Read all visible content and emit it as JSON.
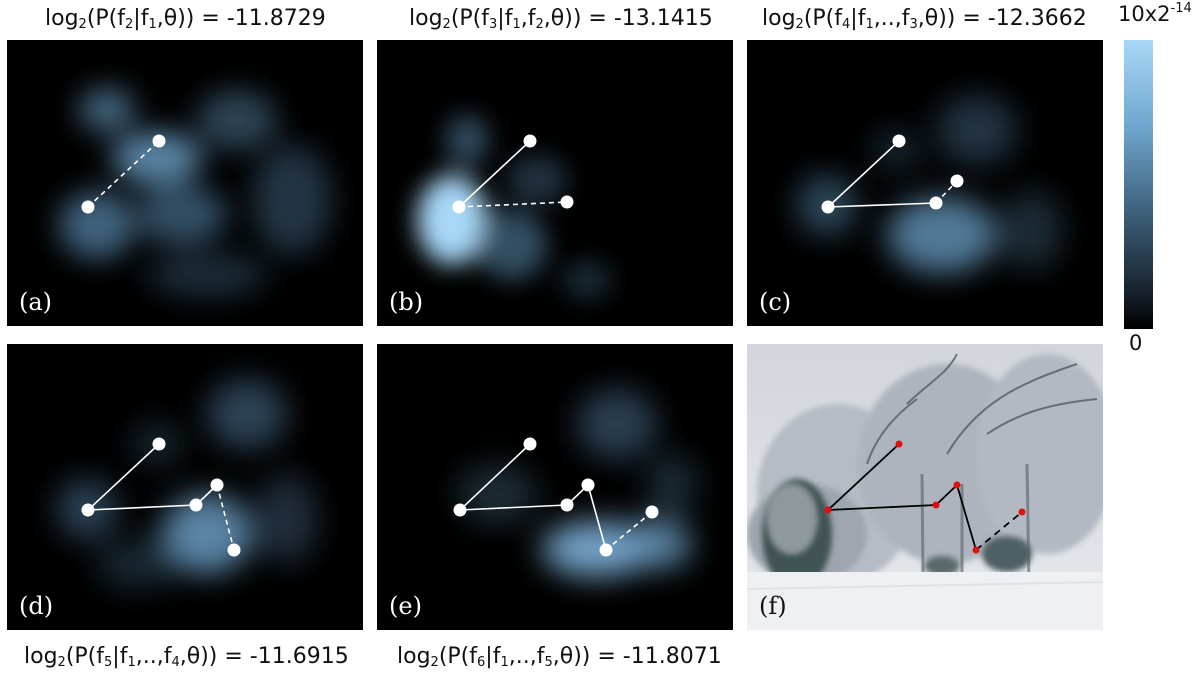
{
  "captions": {
    "a": {
      "prefix": "log",
      "base": "2",
      "open": "(P(f",
      "sub1": "2",
      "mid": "|f",
      "sub2": "1",
      "tail": ",θ)) = -11.8729"
    },
    "b": {
      "prefix": "log",
      "base": "2",
      "open": "(P(f",
      "sub1": "3",
      "mid": "|f",
      "sub2": "1",
      "mid2": ",f",
      "sub3": "2",
      "tail": ",θ)) = -13.1415"
    },
    "c": {
      "prefix": "log",
      "base": "2",
      "open": "(P(f",
      "sub1": "4",
      "mid": "|f",
      "sub2": "1",
      "mid2": ",..,f",
      "sub3": "3",
      "tail": ",θ)) = -12.3662"
    },
    "d": {
      "prefix": "log",
      "base": "2",
      "open": "(P(f",
      "sub1": "5",
      "mid": "|f",
      "sub2": "1",
      "mid2": ",..,f",
      "sub3": "4",
      "tail": ",θ)) = -11.6915"
    },
    "e": {
      "prefix": "log",
      "base": "2",
      "open": "(P(f",
      "sub1": "6",
      "mid": "|f",
      "sub2": "1",
      "mid2": ",..,f",
      "sub3": "5",
      "tail": ",θ)) = -11.8071"
    }
  },
  "panel_labels": {
    "a": "(a)",
    "b": "(b)",
    "c": "(c)",
    "d": "(d)",
    "e": "(e)",
    "f": "(f)"
  },
  "colorbar": {
    "max_base": "10x2",
    "max_exp": "-14",
    "min": "0"
  },
  "colors": {
    "heat_high": "#a8d8f7",
    "heat_low": "#000000",
    "node_heatmap": "#ffffff",
    "node_photo": "#e01010",
    "edge_photo": "#000000"
  }
}
